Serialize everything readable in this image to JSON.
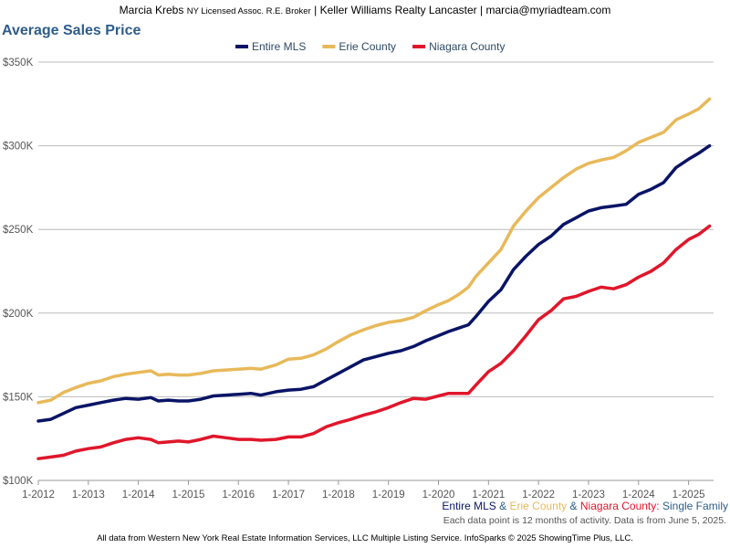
{
  "header": {
    "agent_name": "Marcia Krebs",
    "agent_license": "NY Licensed Assoc. R.E. Broker",
    "brokerage": "Keller Williams Realty Lancaster",
    "email": "marcia@myriadteam.com",
    "separator": "|"
  },
  "subtitle": {
    "series_1": "Entire MLS",
    "amp_1": "&",
    "series_2": "Erie County",
    "amp_2": "&",
    "series_3": "Niagara County",
    "colon": ":",
    "property_type": "Single Family"
  },
  "note": "Each data point is 12 months of activity. Data is from June 5, 2025.",
  "footer": "All data from Western New York Real Estate Information Services, LLC Multiple Listing Service. InfoSparks © 2025 ShowingTime Plus, LLC.",
  "colors": {
    "entire_mls": "#0a1466",
    "erie": "#e8b95a",
    "niagara": "#e0162b",
    "title": "#2e5d8a",
    "axis_text": "#555555"
  },
  "chart_data": {
    "type": "line",
    "title": "Average Sales Price",
    "xlabel": "",
    "ylabel": "",
    "ylim": [
      100000,
      350000
    ],
    "xlim": [
      2012.0,
      2025.5
    ],
    "yticks": [
      100000,
      150000,
      200000,
      250000,
      300000,
      350000
    ],
    "ytick_labels": [
      "$100K",
      "$150K",
      "$200K",
      "$250K",
      "$300K",
      "$350K"
    ],
    "xticks": [
      2012,
      2013,
      2014,
      2015,
      2016,
      2017,
      2018,
      2019,
      2020,
      2021,
      2022,
      2023,
      2024,
      2025
    ],
    "xtick_labels": [
      "1-2012",
      "1-2013",
      "1-2014",
      "1-2015",
      "1-2016",
      "1-2017",
      "1-2018",
      "1-2019",
      "1-2020",
      "1-2021",
      "1-2022",
      "1-2023",
      "1-2024",
      "1-2025"
    ],
    "grid": true,
    "legend_position": "top-center",
    "series": [
      {
        "name": "Entire MLS",
        "key": "entire",
        "x": [
          2012.0,
          2012.25,
          2012.5,
          2012.75,
          2013.0,
          2013.25,
          2013.5,
          2013.75,
          2014.0,
          2014.25,
          2014.4,
          2014.6,
          2014.8,
          2015.0,
          2015.25,
          2015.5,
          2015.75,
          2016.0,
          2016.25,
          2016.45,
          2016.75,
          2017.0,
          2017.25,
          2017.5,
          2017.75,
          2018.0,
          2018.25,
          2018.5,
          2018.75,
          2019.0,
          2019.25,
          2019.5,
          2019.75,
          2020.0,
          2020.2,
          2020.4,
          2020.6,
          2020.75,
          2021.0,
          2021.25,
          2021.5,
          2021.75,
          2022.0,
          2022.25,
          2022.5,
          2022.75,
          2023.0,
          2023.25,
          2023.5,
          2023.75,
          2024.0,
          2024.25,
          2024.5,
          2024.75,
          2025.0,
          2025.2,
          2025.42
        ],
        "values": [
          135500,
          136500,
          140000,
          143500,
          145000,
          146500,
          148000,
          149000,
          148500,
          149500,
          147500,
          148000,
          147500,
          147500,
          148500,
          150500,
          151000,
          151500,
          152000,
          151000,
          153000,
          154000,
          154500,
          156000,
          160000,
          164000,
          168000,
          172000,
          174000,
          176000,
          177500,
          180000,
          183500,
          186500,
          189000,
          191000,
          193000,
          198000,
          207000,
          214000,
          226000,
          234000,
          241000,
          246000,
          253000,
          257000,
          261000,
          263000,
          264000,
          265000,
          271000,
          274000,
          278000,
          287000,
          292000,
          295500,
          300000
        ]
      },
      {
        "name": "Erie County",
        "key": "erie",
        "x": [
          2012.0,
          2012.25,
          2012.5,
          2012.75,
          2013.0,
          2013.25,
          2013.5,
          2013.75,
          2014.0,
          2014.25,
          2014.4,
          2014.6,
          2014.8,
          2015.0,
          2015.25,
          2015.5,
          2015.75,
          2016.0,
          2016.25,
          2016.45,
          2016.75,
          2017.0,
          2017.25,
          2017.5,
          2017.75,
          2018.0,
          2018.25,
          2018.5,
          2018.75,
          2019.0,
          2019.25,
          2019.5,
          2019.75,
          2020.0,
          2020.2,
          2020.4,
          2020.6,
          2020.75,
          2021.0,
          2021.25,
          2021.5,
          2021.75,
          2022.0,
          2022.25,
          2022.5,
          2022.75,
          2023.0,
          2023.25,
          2023.5,
          2023.75,
          2024.0,
          2024.25,
          2024.5,
          2024.75,
          2025.0,
          2025.2,
          2025.42
        ],
        "values": [
          146500,
          148000,
          152500,
          155500,
          158000,
          159500,
          162000,
          163500,
          164500,
          165500,
          163000,
          163500,
          163000,
          163000,
          164000,
          165500,
          166000,
          166500,
          167000,
          166500,
          169000,
          172500,
          173000,
          175000,
          178500,
          183000,
          187000,
          190000,
          192500,
          194500,
          195500,
          197500,
          201500,
          205000,
          207500,
          211000,
          215500,
          222000,
          230000,
          238000,
          252000,
          261000,
          269000,
          275000,
          281000,
          286000,
          289500,
          291500,
          293000,
          297000,
          302000,
          305000,
          308000,
          315500,
          319000,
          322000,
          328000
        ]
      },
      {
        "name": "Niagara County",
        "key": "niagara",
        "x": [
          2012.0,
          2012.25,
          2012.5,
          2012.75,
          2013.0,
          2013.25,
          2013.5,
          2013.75,
          2014.0,
          2014.25,
          2014.4,
          2014.6,
          2014.8,
          2015.0,
          2015.25,
          2015.5,
          2015.75,
          2016.0,
          2016.25,
          2016.45,
          2016.75,
          2017.0,
          2017.25,
          2017.5,
          2017.75,
          2018.0,
          2018.25,
          2018.5,
          2018.75,
          2019.0,
          2019.25,
          2019.5,
          2019.75,
          2020.0,
          2020.2,
          2020.4,
          2020.6,
          2020.75,
          2021.0,
          2021.25,
          2021.5,
          2021.75,
          2022.0,
          2022.25,
          2022.5,
          2022.75,
          2023.0,
          2023.25,
          2023.5,
          2023.75,
          2024.0,
          2024.25,
          2024.5,
          2024.75,
          2025.0,
          2025.2,
          2025.42
        ],
        "values": [
          113000,
          114000,
          115000,
          117500,
          119000,
          120000,
          122500,
          124500,
          125500,
          124500,
          122500,
          123000,
          123500,
          123000,
          124500,
          126500,
          125500,
          124500,
          124500,
          124000,
          124500,
          126000,
          126000,
          128000,
          132000,
          134500,
          136500,
          139000,
          141000,
          143500,
          146500,
          149000,
          148500,
          150500,
          152000,
          152000,
          152000,
          157000,
          165000,
          170000,
          177500,
          186500,
          196000,
          201500,
          208500,
          210000,
          213000,
          215500,
          214500,
          217000,
          221500,
          225000,
          230000,
          238000,
          244000,
          247000,
          252000
        ]
      }
    ]
  }
}
